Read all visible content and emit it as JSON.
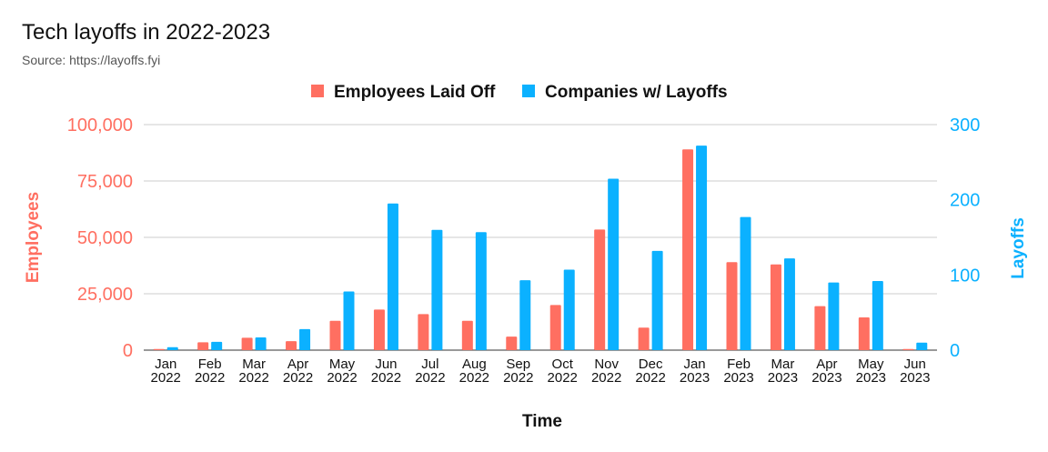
{
  "title": "Tech layoffs in 2022-2023",
  "subtitle": "Source: https://layoffs.fyi",
  "colors": {
    "employees": "#ff6f61",
    "companies": "#0bb1ff",
    "grid": "#cccccc",
    "text": "#111111"
  },
  "chart_data": {
    "type": "bar",
    "xlabel": "Time",
    "y_left_label": "Employees",
    "y_right_label": "Layoffs",
    "y_left_lim": [
      0,
      100000
    ],
    "y_right_lim": [
      0,
      300
    ],
    "y_left_ticks": [
      0,
      25000,
      50000,
      75000,
      100000
    ],
    "y_left_tick_labels": [
      "0",
      "25,000",
      "50,000",
      "75,000",
      "100,000"
    ],
    "y_right_ticks": [
      0,
      100,
      200,
      300
    ],
    "y_right_tick_labels": [
      "0",
      "100",
      "200",
      "300"
    ],
    "grid": true,
    "legend_position": "top-center",
    "categories": [
      [
        "Jan",
        "2022"
      ],
      [
        "Feb",
        "2022"
      ],
      [
        "Mar",
        "2022"
      ],
      [
        "Apr",
        "2022"
      ],
      [
        "May",
        "2022"
      ],
      [
        "Jun",
        "2022"
      ],
      [
        "Jul",
        "2022"
      ],
      [
        "Aug",
        "2022"
      ],
      [
        "Sep",
        "2022"
      ],
      [
        "Oct",
        "2022"
      ],
      [
        "Nov",
        "2022"
      ],
      [
        "Dec",
        "2022"
      ],
      [
        "Jan",
        "2023"
      ],
      [
        "Feb",
        "2023"
      ],
      [
        "Mar",
        "2023"
      ],
      [
        "Apr",
        "2023"
      ],
      [
        "May",
        "2023"
      ],
      [
        "Jun",
        "2023"
      ]
    ],
    "series": [
      {
        "name": "Employees Laid Off",
        "axis": "left",
        "values": [
          500,
          3500,
          5500,
          4000,
          13000,
          18000,
          16000,
          13000,
          6000,
          20000,
          53500,
          10000,
          89000,
          39000,
          38000,
          19500,
          14500,
          500
        ]
      },
      {
        "name": "Companies w/ Layoffs",
        "axis": "right",
        "values": [
          4,
          11,
          17,
          28,
          78,
          195,
          160,
          157,
          93,
          107,
          228,
          132,
          272,
          177,
          122,
          90,
          92,
          10
        ]
      }
    ]
  }
}
